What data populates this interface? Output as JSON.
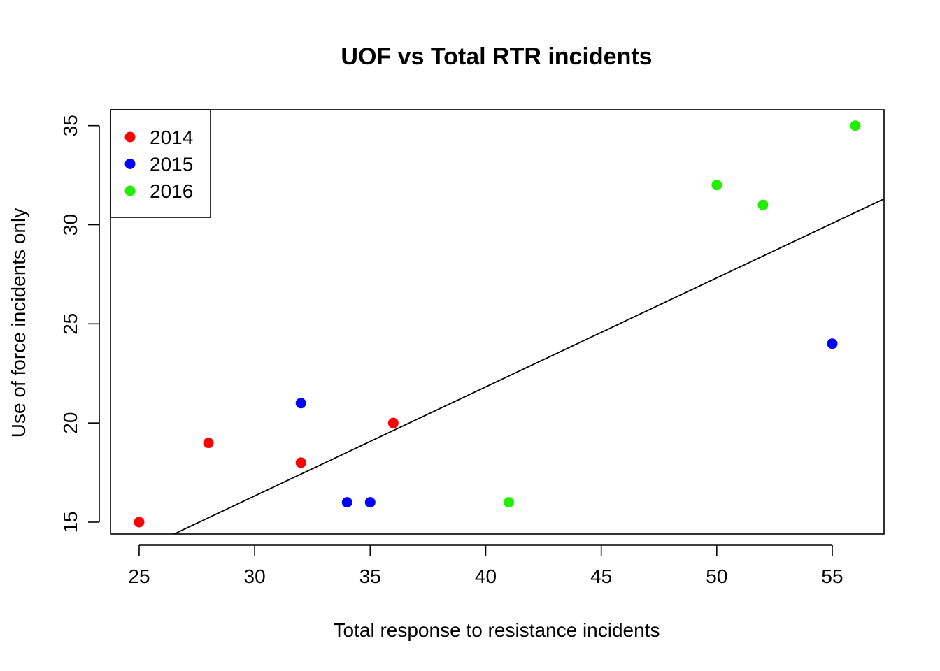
{
  "chart_data": {
    "type": "scatter",
    "title": "UOF vs Total RTR incidents",
    "xlabel": "Total response to resistance incidents",
    "ylabel": "Use of force incidents only",
    "xlim": [
      23.76,
      57.24
    ],
    "ylim": [
      14.4,
      35.8
    ],
    "x_ticks": [
      25,
      30,
      35,
      40,
      45,
      50,
      55
    ],
    "y_ticks": [
      15,
      20,
      25,
      30,
      35
    ],
    "grid": false,
    "legend_position": "top-left",
    "series": [
      {
        "name": "2014",
        "color": "#ff0000",
        "points": [
          [
            25,
            15
          ],
          [
            28,
            19
          ],
          [
            32,
            18
          ],
          [
            36,
            20
          ]
        ]
      },
      {
        "name": "2015",
        "color": "#0000ff",
        "points": [
          [
            32,
            21
          ],
          [
            34,
            16
          ],
          [
            35,
            16
          ],
          [
            55,
            24
          ]
        ]
      },
      {
        "name": "2016",
        "color": "#22ee00",
        "points": [
          [
            41,
            16
          ],
          [
            50,
            32
          ],
          [
            52,
            31
          ],
          [
            56,
            35
          ]
        ]
      }
    ],
    "regression_line": {
      "intercept": -0.18,
      "slope": 0.55
    }
  }
}
